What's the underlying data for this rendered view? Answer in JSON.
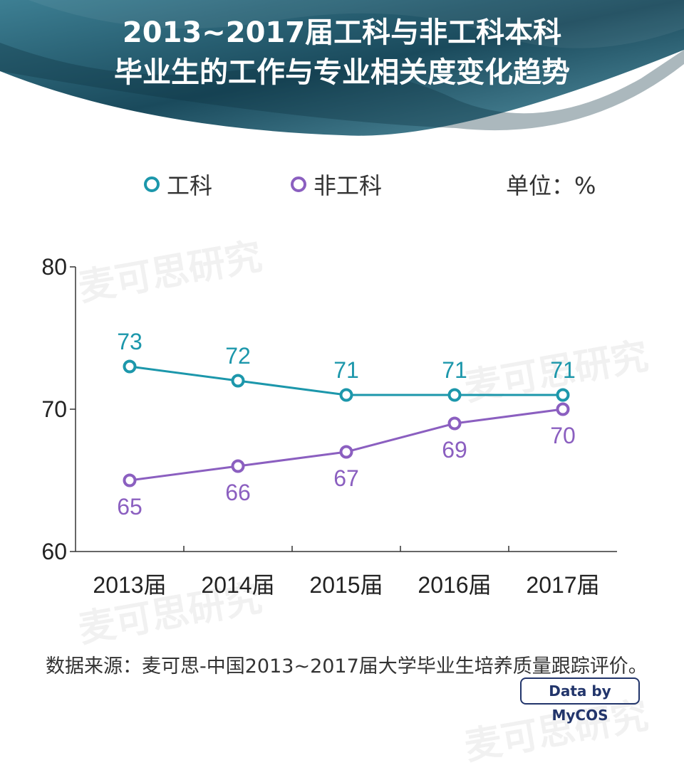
{
  "title": {
    "line1": "2013~2017届工科与非工科本科",
    "line2": "毕业生的工作与专业相关度变化趋势"
  },
  "legend": {
    "gk_label": "工科",
    "fgk_label": "非工科",
    "unit": "单位：%"
  },
  "colors": {
    "gk": "#1c97ab",
    "fgk": "#8b5fc0",
    "header_dark": "#1a4a5c",
    "header_light": "#4f8ea0"
  },
  "chart_data": {
    "type": "line",
    "categories": [
      "2013届",
      "2014届",
      "2015届",
      "2016届",
      "2017届"
    ],
    "series": [
      {
        "name": "工科",
        "values": [
          73,
          72,
          71,
          71,
          71
        ]
      },
      {
        "name": "非工科",
        "values": [
          65,
          66,
          67,
          69,
          70
        ]
      }
    ],
    "ylim": [
      60,
      80
    ],
    "yticks": [
      60,
      70,
      80
    ],
    "grid": false,
    "legend_position": "top"
  },
  "watermark": "麦可思研究",
  "source": "数据来源：麦可思-中国2013~2017届大学毕业生培养质量跟踪评价。",
  "brand": "Data by MyCOS"
}
